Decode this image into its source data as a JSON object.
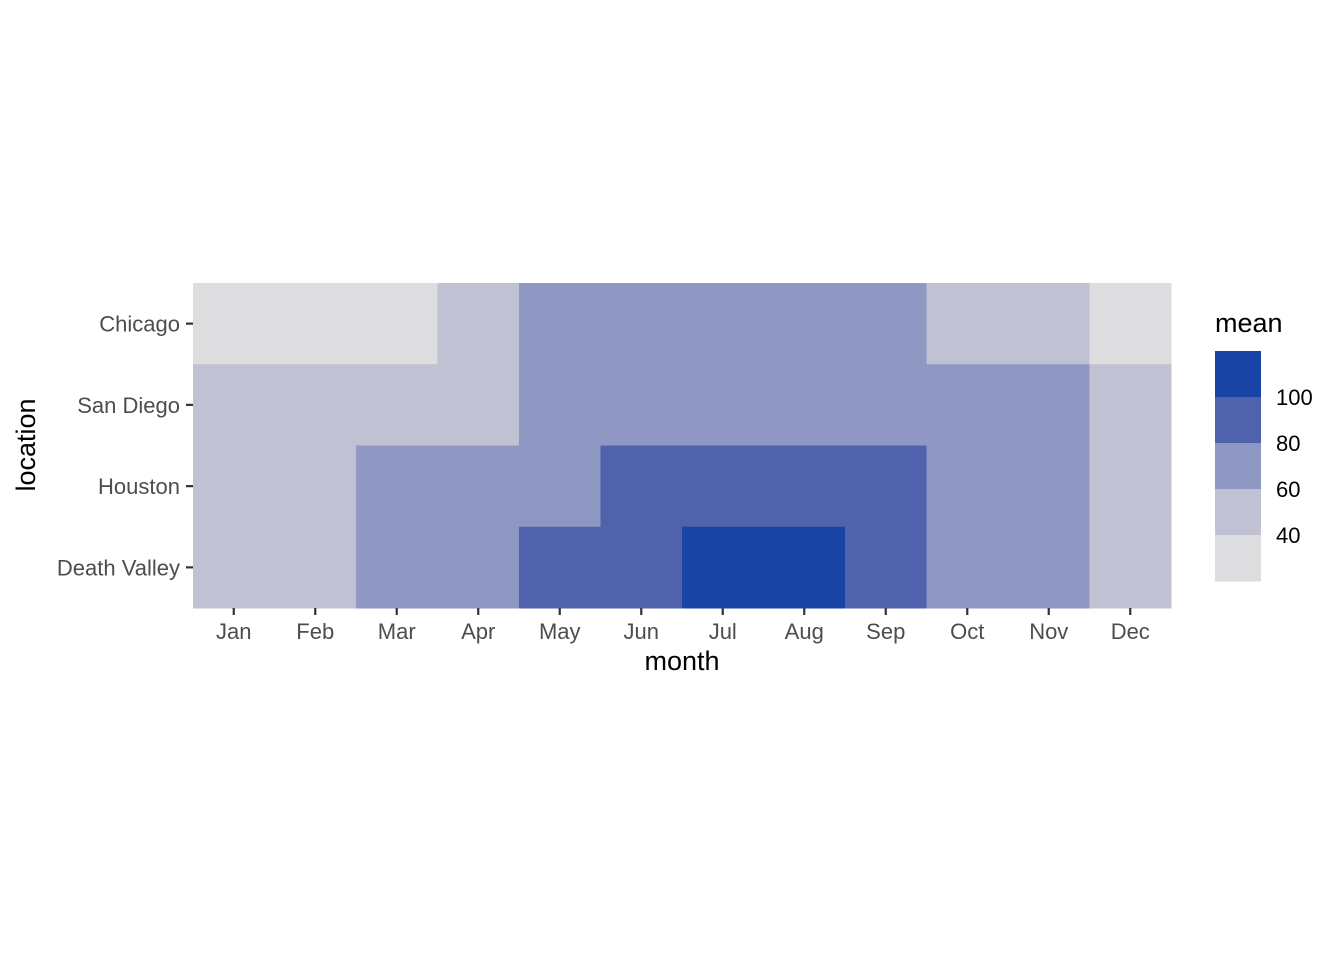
{
  "chart_data": {
    "type": "heatmap",
    "xlabel": "month",
    "ylabel": "location",
    "x": [
      "Jan",
      "Feb",
      "Mar",
      "Apr",
      "May",
      "Jun",
      "Jul",
      "Aug",
      "Sep",
      "Oct",
      "Nov",
      "Dec"
    ],
    "y": [
      "Chicago",
      "San Diego",
      "Houston",
      "Death Valley"
    ],
    "values": [
      [
        30,
        30,
        30,
        50,
        70,
        70,
        70,
        70,
        70,
        50,
        50,
        30
      ],
      [
        50,
        50,
        50,
        50,
        70,
        70,
        70,
        70,
        70,
        70,
        70,
        50
      ],
      [
        50,
        50,
        70,
        70,
        70,
        90,
        90,
        90,
        90,
        70,
        70,
        50
      ],
      [
        50,
        50,
        70,
        70,
        90,
        90,
        110,
        110,
        90,
        70,
        70,
        50
      ]
    ],
    "legend": {
      "title": "mean",
      "position": "right",
      "breaks": [
        40,
        60,
        80,
        100
      ],
      "bins": [
        {
          "max": 40,
          "color": "#dddde0"
        },
        {
          "max": 60,
          "color": "#c0c1d3"
        },
        {
          "max": 80,
          "color": "#8f97c3"
        },
        {
          "max": 100,
          "color": "#5062ab"
        },
        {
          "max": 999,
          "color": "#1844a6"
        }
      ]
    },
    "grid": false
  }
}
